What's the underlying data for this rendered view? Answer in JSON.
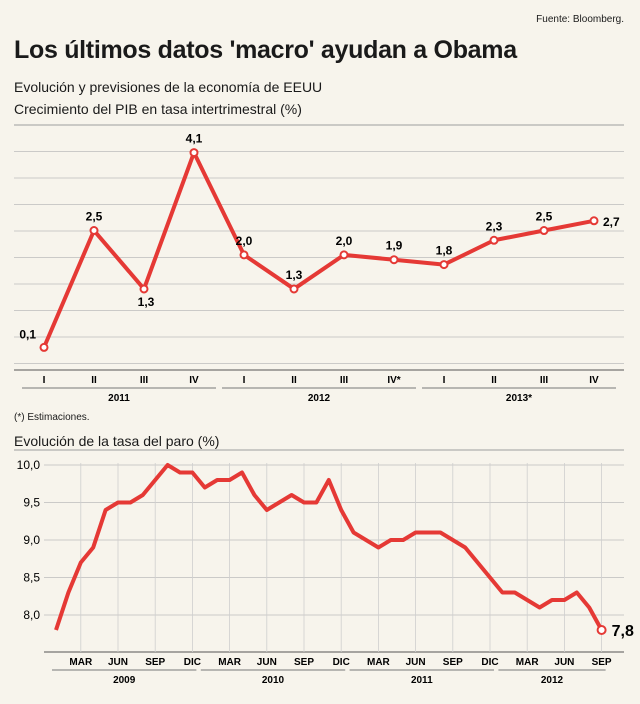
{
  "header": {
    "source": "Fuente: Bloomberg.",
    "title": "Los últimos datos 'macro' ayudan a Obama",
    "subtitle1": "Evolución  y previsiones de la economía de EEUU",
    "subtitle2": "Crecimiento del PIB en tasa intertrimestral (%)"
  },
  "note": "(*) Estimaciones.",
  "unemployment_title": "Evolución de la tasa del paro (%)",
  "colors": {
    "line": "#e53935",
    "background": "#f7f4ec",
    "grid": "#bdbdbd"
  },
  "chart_data": [
    {
      "type": "line",
      "title": "Crecimiento del PIB en tasa intertrimestral (%)",
      "categories": [
        "I",
        "II",
        "III",
        "IV",
        "I",
        "II",
        "III",
        "IV*",
        "I",
        "II",
        "III",
        "IV"
      ],
      "groups": [
        {
          "label": "2011",
          "count": 4
        },
        {
          "label": "2012",
          "count": 4
        },
        {
          "label": "2013*",
          "count": 4
        }
      ],
      "values": [
        0.1,
        2.5,
        1.3,
        4.1,
        2.0,
        1.3,
        2.0,
        1.9,
        1.8,
        2.3,
        2.5,
        2.7
      ],
      "labels": [
        "0,1",
        "2,5",
        "1,3",
        "4,1",
        "2,0",
        "1,3",
        "2,0",
        "1,9",
        "1,8",
        "2,3",
        "2,5",
        "2,7"
      ],
      "ylim": [
        -0.2,
        4.4
      ],
      "grid": true
    },
    {
      "type": "line",
      "title": "Evolución de la tasa del paro (%)",
      "x_ticks": [
        "MAR",
        "JUN",
        "SEP",
        "DIC",
        "MAR",
        "JUN",
        "SEP",
        "DIC",
        "MAR",
        "JUN",
        "SEP",
        "DIC",
        "MAR",
        "JUN",
        "SEP"
      ],
      "groups": [
        {
          "label": "2009",
          "start": 0,
          "end": 11
        },
        {
          "label": "2010",
          "start": 12,
          "end": 23
        },
        {
          "label": "2011",
          "start": 24,
          "end": 35
        },
        {
          "label": "2012",
          "start": 36,
          "end": 44
        }
      ],
      "y_ticks": [
        "10,0",
        "9,5",
        "9,0",
        "8,5",
        "8,0"
      ],
      "y_tick_values": [
        10.0,
        9.5,
        9.0,
        8.5,
        8.0
      ],
      "ylim": [
        7.6,
        10.05
      ],
      "values": [
        7.8,
        8.3,
        8.7,
        8.9,
        9.4,
        9.5,
        9.5,
        9.6,
        9.8,
        10.0,
        9.9,
        9.9,
        9.7,
        9.8,
        9.8,
        9.9,
        9.6,
        9.4,
        9.5,
        9.6,
        9.5,
        9.5,
        9.8,
        9.4,
        9.1,
        9.0,
        8.9,
        9.0,
        9.0,
        9.1,
        9.1,
        9.1,
        9.0,
        8.9,
        8.7,
        8.5,
        8.3,
        8.3,
        8.2,
        8.1,
        8.2,
        8.2,
        8.3,
        8.1,
        7.8
      ],
      "last_label": "7,8",
      "grid": true
    }
  ]
}
